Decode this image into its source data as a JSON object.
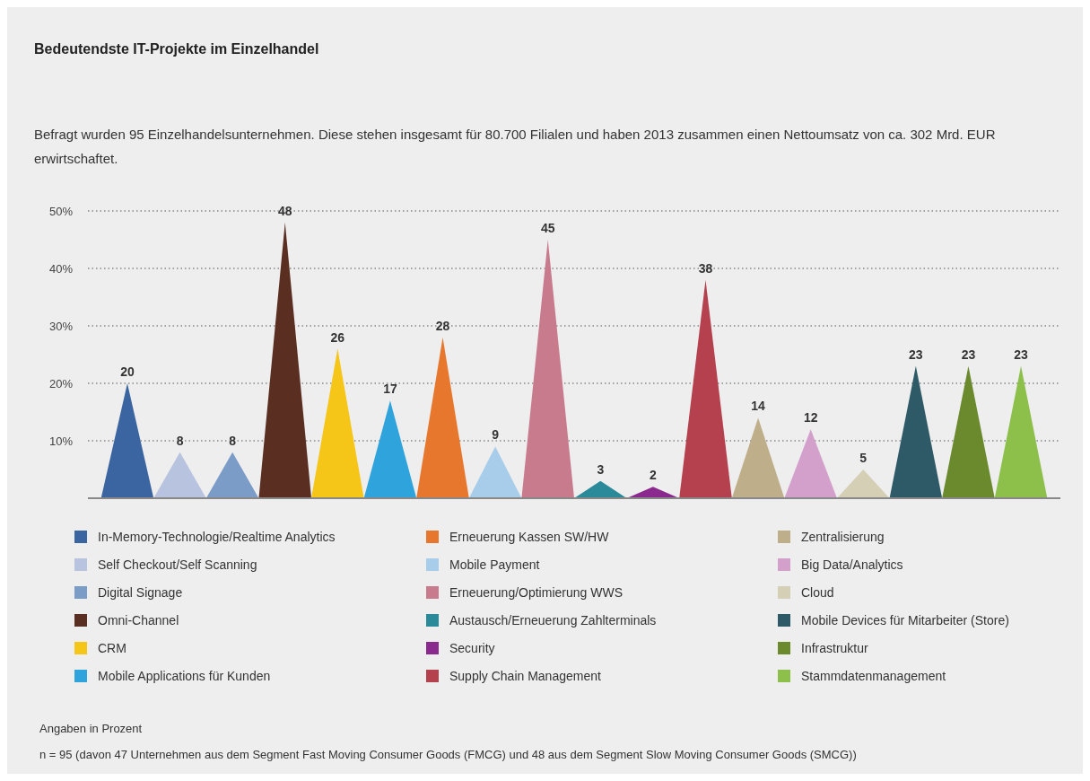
{
  "chart_data": {
    "type": "area",
    "title": "Bedeutendste IT-Projekte im Einzelhandel",
    "subtitle": "Befragt wurden 95 Einzelhandelsunternehmen. Diese stehen insgesamt für 80.700 Filialen und haben 2013 zusammen einen Nettoumsatz von ca. 302 Mrd. EUR erwirtschaftet.",
    "categories": [
      null,
      null,
      null,
      null,
      null,
      null,
      null,
      null,
      null,
      null,
      null,
      null,
      null,
      null,
      null,
      null,
      null,
      null,
      null,
      null,
      null,
      null,
      null,
      null,
      null,
      null,
      null,
      null,
      null,
      null,
      null,
      null,
      null,
      null,
      null,
      null,
      null
    ],
    "series": [
      {
        "name": "In-Memory-Technologie/Realtime Analytics",
        "color": "#3a65a0",
        "values": [
          0,
          20,
          0,
          null,
          null,
          null,
          null,
          null,
          null,
          null,
          null,
          null,
          null,
          null,
          null,
          null,
          null,
          null,
          null,
          null,
          null,
          null,
          null,
          null,
          null,
          null,
          null,
          null,
          null,
          null,
          null,
          null,
          null,
          null,
          null,
          null,
          null
        ],
        "value_labels": [
          null,
          "20",
          null,
          null,
          null,
          null,
          null,
          null,
          null,
          null,
          null,
          null,
          null,
          null,
          null,
          null,
          null,
          null,
          null,
          null,
          null,
          null,
          null,
          null,
          null,
          null,
          null,
          null,
          null,
          null,
          null,
          null,
          null,
          null,
          null,
          null,
          null
        ]
      },
      {
        "name": "Self Checkout/Self Scanning",
        "color": "#b8c3e0",
        "values": [
          null,
          null,
          0,
          8,
          0,
          null,
          null,
          null,
          null,
          null,
          null,
          null,
          null,
          null,
          null,
          null,
          null,
          null,
          null,
          null,
          null,
          null,
          null,
          null,
          null,
          null,
          null,
          null,
          null,
          null,
          null,
          null,
          null,
          null,
          null,
          null,
          null
        ],
        "value_labels": [
          null,
          null,
          null,
          "8",
          null,
          null,
          null,
          null,
          null,
          null,
          null,
          null,
          null,
          null,
          null,
          null,
          null,
          null,
          null,
          null,
          null,
          null,
          null,
          null,
          null,
          null,
          null,
          null,
          null,
          null,
          null,
          null,
          null,
          null,
          null,
          null,
          null
        ]
      },
      {
        "name": "Digital Signage",
        "color": "#7c9cc8",
        "values": [
          null,
          null,
          null,
          null,
          0,
          8,
          0,
          null,
          null,
          null,
          null,
          null,
          null,
          null,
          null,
          null,
          null,
          null,
          null,
          null,
          null,
          null,
          null,
          null,
          null,
          null,
          null,
          null,
          null,
          null,
          null,
          null,
          null,
          null,
          null,
          null,
          null
        ],
        "value_labels": [
          null,
          null,
          null,
          null,
          null,
          "8",
          null,
          null,
          null,
          null,
          null,
          null,
          null,
          null,
          null,
          null,
          null,
          null,
          null,
          null,
          null,
          null,
          null,
          null,
          null,
          null,
          null,
          null,
          null,
          null,
          null,
          null,
          null,
          null,
          null,
          null,
          null
        ]
      },
      {
        "name": "Omni-Channel",
        "color": "#5a2f22",
        "values": [
          null,
          null,
          null,
          null,
          null,
          null,
          0,
          48,
          0,
          null,
          null,
          null,
          null,
          null,
          null,
          null,
          null,
          null,
          null,
          null,
          null,
          null,
          null,
          null,
          null,
          null,
          null,
          null,
          null,
          null,
          null,
          null,
          null,
          null,
          null,
          null,
          null
        ],
        "value_labels": [
          null,
          null,
          null,
          null,
          null,
          null,
          null,
          "48",
          null,
          null,
          null,
          null,
          null,
          null,
          null,
          null,
          null,
          null,
          null,
          null,
          null,
          null,
          null,
          null,
          null,
          null,
          null,
          null,
          null,
          null,
          null,
          null,
          null,
          null,
          null,
          null,
          null
        ]
      },
      {
        "name": "CRM",
        "color": "#f5c518",
        "values": [
          null,
          null,
          null,
          null,
          null,
          null,
          null,
          null,
          0,
          26,
          0,
          null,
          null,
          null,
          null,
          null,
          null,
          null,
          null,
          null,
          null,
          null,
          null,
          null,
          null,
          null,
          null,
          null,
          null,
          null,
          null,
          null,
          null,
          null,
          null,
          null,
          null
        ],
        "value_labels": [
          null,
          null,
          null,
          null,
          null,
          null,
          null,
          null,
          null,
          "26",
          null,
          null,
          null,
          null,
          null,
          null,
          null,
          null,
          null,
          null,
          null,
          null,
          null,
          null,
          null,
          null,
          null,
          null,
          null,
          null,
          null,
          null,
          null,
          null,
          null,
          null,
          null
        ]
      },
      {
        "name": "Mobile Applications für Kunden",
        "color": "#2ea3dc",
        "values": [
          null,
          null,
          null,
          null,
          null,
          null,
          null,
          null,
          null,
          null,
          0,
          17,
          0,
          null,
          null,
          null,
          null,
          null,
          null,
          null,
          null,
          null,
          null,
          null,
          null,
          null,
          null,
          null,
          null,
          null,
          null,
          null,
          null,
          null,
          null,
          null,
          null
        ],
        "value_labels": [
          null,
          null,
          null,
          null,
          null,
          null,
          null,
          null,
          null,
          null,
          null,
          "17",
          null,
          null,
          null,
          null,
          null,
          null,
          null,
          null,
          null,
          null,
          null,
          null,
          null,
          null,
          null,
          null,
          null,
          null,
          null,
          null,
          null,
          null,
          null,
          null,
          null
        ]
      },
      {
        "name": "Erneuerung Kassen SW/HW",
        "color": "#e8772e",
        "values": [
          null,
          null,
          null,
          null,
          null,
          null,
          null,
          null,
          null,
          null,
          null,
          null,
          0,
          28,
          0,
          null,
          null,
          null,
          null,
          null,
          null,
          null,
          null,
          null,
          null,
          null,
          null,
          null,
          null,
          null,
          null,
          null,
          null,
          null,
          null,
          null,
          null
        ],
        "value_labels": [
          null,
          null,
          null,
          null,
          null,
          null,
          null,
          null,
          null,
          null,
          null,
          null,
          null,
          "28",
          null,
          null,
          null,
          null,
          null,
          null,
          null,
          null,
          null,
          null,
          null,
          null,
          null,
          null,
          null,
          null,
          null,
          null,
          null,
          null,
          null,
          null,
          null
        ]
      },
      {
        "name": "Mobile Payment",
        "color": "#a8cdea",
        "values": [
          null,
          null,
          null,
          null,
          null,
          null,
          null,
          null,
          null,
          null,
          null,
          null,
          null,
          null,
          0,
          9,
          0,
          null,
          null,
          null,
          null,
          null,
          null,
          null,
          null,
          null,
          null,
          null,
          null,
          null,
          null,
          null,
          null,
          null,
          null,
          null,
          null
        ],
        "value_labels": [
          null,
          null,
          null,
          null,
          null,
          null,
          null,
          null,
          null,
          null,
          null,
          null,
          null,
          null,
          null,
          "9",
          null,
          null,
          null,
          null,
          null,
          null,
          null,
          null,
          null,
          null,
          null,
          null,
          null,
          null,
          null,
          null,
          null,
          null,
          null,
          null,
          null
        ]
      },
      {
        "name": "Erneuerung/Optimierung WWS",
        "color": "#c97b8e",
        "values": [
          null,
          null,
          null,
          null,
          null,
          null,
          null,
          null,
          null,
          null,
          null,
          null,
          null,
          null,
          null,
          null,
          0,
          45,
          0,
          null,
          null,
          null,
          null,
          null,
          null,
          null,
          null,
          null,
          null,
          null,
          null,
          null,
          null,
          null,
          null,
          null,
          null
        ],
        "value_labels": [
          null,
          null,
          null,
          null,
          null,
          null,
          null,
          null,
          null,
          null,
          null,
          null,
          null,
          null,
          null,
          null,
          null,
          "45",
          null,
          null,
          null,
          null,
          null,
          null,
          null,
          null,
          null,
          null,
          null,
          null,
          null,
          null,
          null,
          null,
          null,
          null,
          null
        ]
      },
      {
        "name": "Austausch/Erneuerung Zahlterminals",
        "color": "#2b8a99",
        "values": [
          null,
          null,
          null,
          null,
          null,
          null,
          null,
          null,
          null,
          null,
          null,
          null,
          null,
          null,
          null,
          null,
          null,
          null,
          0,
          3,
          0,
          null,
          null,
          null,
          null,
          null,
          null,
          null,
          null,
          null,
          null,
          null,
          null,
          null,
          null,
          null,
          null
        ],
        "value_labels": [
          null,
          null,
          null,
          null,
          null,
          null,
          null,
          null,
          null,
          null,
          null,
          null,
          null,
          null,
          null,
          null,
          null,
          null,
          null,
          "3",
          null,
          null,
          null,
          null,
          null,
          null,
          null,
          null,
          null,
          null,
          null,
          null,
          null,
          null,
          null,
          null,
          null
        ]
      },
      {
        "name": "Security",
        "color": "#8b2a8e",
        "values": [
          null,
          null,
          null,
          null,
          null,
          null,
          null,
          null,
          null,
          null,
          null,
          null,
          null,
          null,
          null,
          null,
          null,
          null,
          null,
          null,
          0,
          2,
          0,
          null,
          null,
          null,
          null,
          null,
          null,
          null,
          null,
          null,
          null,
          null,
          null,
          null,
          null
        ],
        "value_labels": [
          null,
          null,
          null,
          null,
          null,
          null,
          null,
          null,
          null,
          null,
          null,
          null,
          null,
          null,
          null,
          null,
          null,
          null,
          null,
          null,
          null,
          "2",
          null,
          null,
          null,
          null,
          null,
          null,
          null,
          null,
          null,
          null,
          null,
          null,
          null,
          null,
          null
        ]
      },
      {
        "name": "Supply Chain Management",
        "color": "#b5404e",
        "values": [
          null,
          null,
          null,
          null,
          null,
          null,
          null,
          null,
          null,
          null,
          null,
          null,
          null,
          null,
          null,
          null,
          null,
          null,
          null,
          null,
          null,
          null,
          0,
          38,
          0,
          null,
          null,
          null,
          null,
          null,
          null,
          null,
          null,
          null,
          null,
          null,
          null
        ],
        "value_labels": [
          null,
          null,
          null,
          null,
          null,
          null,
          null,
          null,
          null,
          null,
          null,
          null,
          null,
          null,
          null,
          null,
          null,
          null,
          null,
          null,
          null,
          null,
          null,
          "38",
          null,
          null,
          null,
          null,
          null,
          null,
          null,
          null,
          null,
          null,
          null,
          null,
          null
        ]
      },
      {
        "name": "Zentralisierung",
        "color": "#bfae8a",
        "values": [
          null,
          null,
          null,
          null,
          null,
          null,
          null,
          null,
          null,
          null,
          null,
          null,
          null,
          null,
          null,
          null,
          null,
          null,
          null,
          null,
          null,
          null,
          null,
          null,
          0,
          14,
          0,
          null,
          null,
          null,
          null,
          null,
          null,
          null,
          null,
          null,
          null
        ],
        "value_labels": [
          null,
          null,
          null,
          null,
          null,
          null,
          null,
          null,
          null,
          null,
          null,
          null,
          null,
          null,
          null,
          null,
          null,
          null,
          null,
          null,
          null,
          null,
          null,
          null,
          null,
          "14",
          null,
          null,
          null,
          null,
          null,
          null,
          null,
          null,
          null,
          null,
          null
        ]
      },
      {
        "name": "Big Data/Analytics",
        "color": "#d3a0cc",
        "values": [
          null,
          null,
          null,
          null,
          null,
          null,
          null,
          null,
          null,
          null,
          null,
          null,
          null,
          null,
          null,
          null,
          null,
          null,
          null,
          null,
          null,
          null,
          null,
          null,
          null,
          null,
          0,
          12,
          0,
          null,
          null,
          null,
          null,
          null,
          null,
          null,
          null
        ],
        "value_labels": [
          null,
          null,
          null,
          null,
          null,
          null,
          null,
          null,
          null,
          null,
          null,
          null,
          null,
          null,
          null,
          null,
          null,
          null,
          null,
          null,
          null,
          null,
          null,
          null,
          null,
          null,
          null,
          "12",
          null,
          null,
          null,
          null,
          null,
          null,
          null,
          null,
          null
        ]
      },
      {
        "name": "Cloud",
        "color": "#d5cfb5",
        "values": [
          null,
          null,
          null,
          null,
          null,
          null,
          null,
          null,
          null,
          null,
          null,
          null,
          null,
          null,
          null,
          null,
          null,
          null,
          null,
          null,
          null,
          null,
          null,
          null,
          null,
          null,
          null,
          null,
          0,
          5,
          0,
          null,
          null,
          null,
          null,
          null,
          null
        ],
        "value_labels": [
          null,
          null,
          null,
          null,
          null,
          null,
          null,
          null,
          null,
          null,
          null,
          null,
          null,
          null,
          null,
          null,
          null,
          null,
          null,
          null,
          null,
          null,
          null,
          null,
          null,
          null,
          null,
          null,
          null,
          "5",
          null,
          null,
          null,
          null,
          null,
          null,
          null
        ]
      },
      {
        "name": "Mobile Devices für Mitarbeiter (Store)",
        "color": "#2d5a66",
        "values": [
          null,
          null,
          null,
          null,
          null,
          null,
          null,
          null,
          null,
          null,
          null,
          null,
          null,
          null,
          null,
          null,
          null,
          null,
          null,
          null,
          null,
          null,
          null,
          null,
          null,
          null,
          null,
          null,
          null,
          null,
          0,
          23,
          0,
          null,
          null,
          null,
          null
        ],
        "value_labels": [
          null,
          null,
          null,
          null,
          null,
          null,
          null,
          null,
          null,
          null,
          null,
          null,
          null,
          null,
          null,
          null,
          null,
          null,
          null,
          null,
          null,
          null,
          null,
          null,
          null,
          null,
          null,
          null,
          null,
          null,
          null,
          "23",
          null,
          null,
          null,
          null,
          null
        ]
      },
      {
        "name": "Infrastruktur",
        "color": "#6b8a2e",
        "values": [
          null,
          null,
          null,
          null,
          null,
          null,
          null,
          null,
          null,
          null,
          null,
          null,
          null,
          null,
          null,
          null,
          null,
          null,
          null,
          null,
          null,
          null,
          null,
          null,
          null,
          null,
          null,
          null,
          null,
          null,
          null,
          null,
          0,
          23,
          0,
          null,
          null
        ],
        "value_labels": [
          null,
          null,
          null,
          null,
          null,
          null,
          null,
          null,
          null,
          null,
          null,
          null,
          null,
          null,
          null,
          null,
          null,
          null,
          null,
          null,
          null,
          null,
          null,
          null,
          null,
          null,
          null,
          null,
          null,
          null,
          null,
          null,
          null,
          "23",
          null,
          null,
          null
        ]
      },
      {
        "name": "Stammdatenmanagement",
        "color": "#8cc04a",
        "values": [
          null,
          null,
          null,
          null,
          null,
          null,
          null,
          null,
          null,
          null,
          null,
          null,
          null,
          null,
          null,
          null,
          null,
          null,
          null,
          null,
          null,
          null,
          null,
          null,
          null,
          null,
          null,
          null,
          null,
          null,
          null,
          null,
          null,
          null,
          0,
          23,
          0
        ],
        "value_labels": [
          null,
          null,
          null,
          null,
          null,
          null,
          null,
          null,
          null,
          null,
          null,
          null,
          null,
          null,
          null,
          null,
          null,
          null,
          null,
          null,
          null,
          null,
          null,
          null,
          null,
          null,
          null,
          null,
          null,
          null,
          null,
          null,
          null,
          null,
          null,
          "23",
          null
        ]
      }
    ],
    "ylim": [
      0,
      50
    ],
    "yticks": [
      {
        "value": 10,
        "label": "10%"
      },
      {
        "value": 20,
        "label": "20%"
      },
      {
        "value": 30,
        "label": "30%"
      },
      {
        "value": 40,
        "label": "40%"
      },
      {
        "value": 50,
        "label": "50%"
      }
    ],
    "grid": "y",
    "legend": "bottom",
    "annotations": [
      "Angaben in Prozent",
      "n = 95 (davon 47 Unternehmen aus dem Segment Fast Moving Consumer Goods (FMCG) und 48 aus dem Segment Slow Moving Consumer Goods (SMCG))"
    ]
  }
}
